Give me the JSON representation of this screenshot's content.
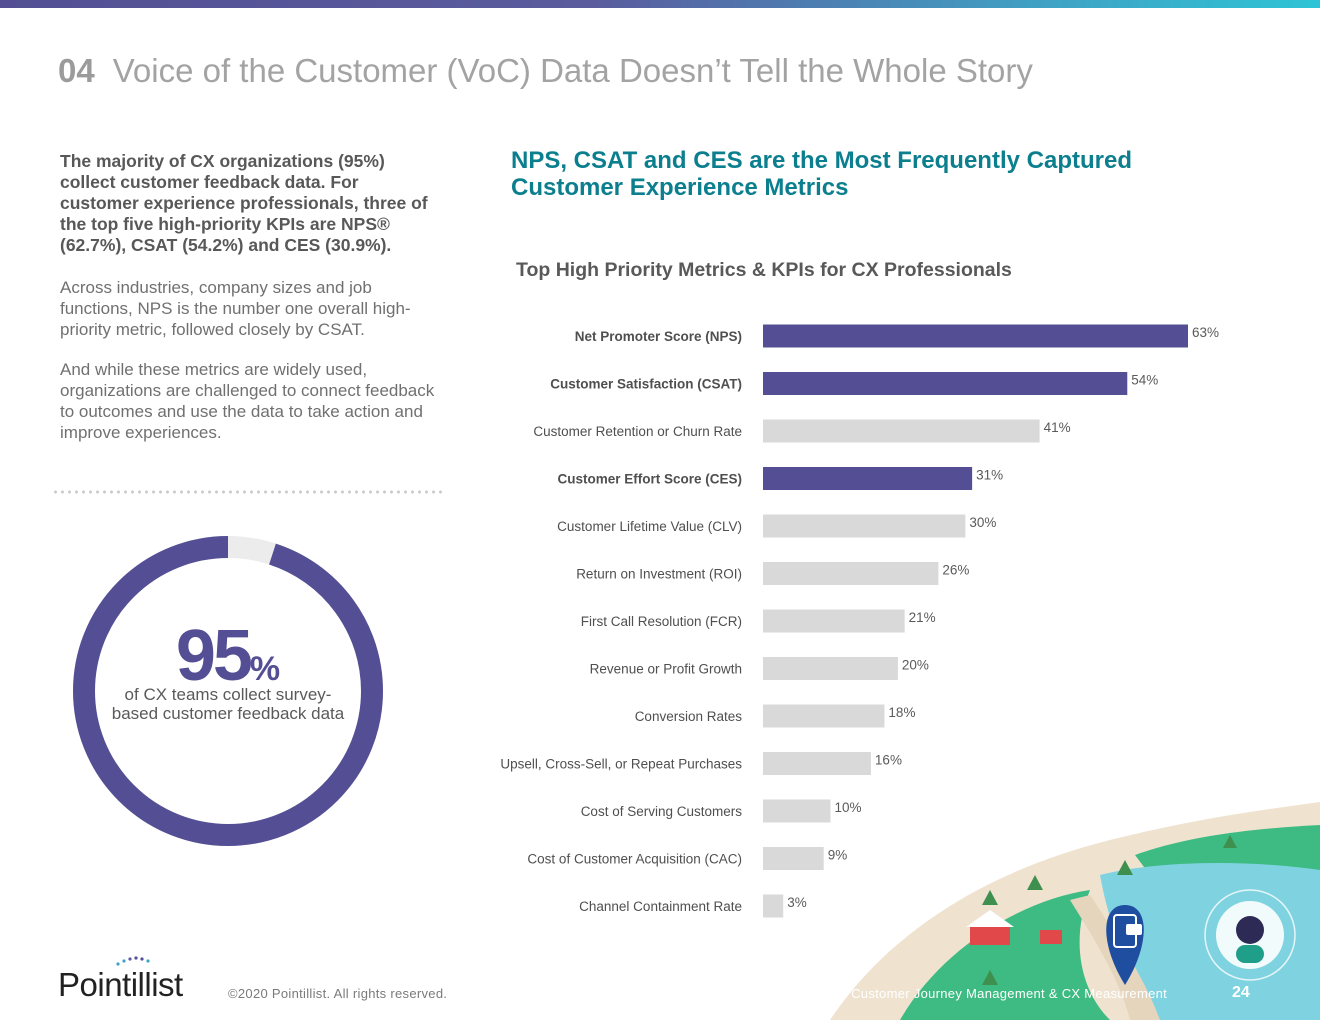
{
  "header": {
    "section_number": "04",
    "title": "Voice of the Customer (VoC) Data Doesn’t Tell the Whole Story"
  },
  "left": {
    "lead": "The majority of CX organizations (95%) collect customer feedback data. For customer experience professionals, three of the top five high-priority KPIs are NPS® (62.7%), CSAT (54.2%) and CES (30.9%).",
    "para1": "Across industries, company sizes and job functions, NPS is the number one overall high-priority metric, followed closely by CSAT.",
    "para2": "And while these metrics are widely used, organizations are challenged to connect feedback to outcomes and use the data to take action and improve experiences."
  },
  "donut": {
    "value": 95,
    "number": "95",
    "unit": "%",
    "caption": "of CX teams collect survey-based customer feedback data"
  },
  "headline": "NPS, CSAT and CES are the Most Frequently Captured Customer Experience Metrics",
  "chart_data": {
    "type": "bar",
    "orientation": "horizontal",
    "title": "Top High Priority Metrics & KPIs for CX Professionals",
    "xlim": [
      0,
      100
    ],
    "grid": false,
    "categories": [
      "Net Promoter Score (NPS)",
      "Customer Satisfaction (CSAT)",
      "Customer Retention or Churn Rate",
      "Customer Effort Score (CES)",
      "Customer Lifetime Value (CLV)",
      "Return on Investment (ROI)",
      "First Call Resolution (FCR)",
      "Revenue or Profit Growth",
      "Conversion Rates",
      "Upsell, Cross-Sell, or Repeat Purchases",
      "Cost of Serving Customers",
      "Cost of Customer Acquisition (CAC)",
      "Channel Containment Rate"
    ],
    "values": [
      63,
      54,
      41,
      31,
      30,
      26,
      21,
      20,
      18,
      16,
      10,
      9,
      3
    ],
    "labels": [
      "63%",
      "54%",
      "41%",
      "31%",
      "30%",
      "26%",
      "21%",
      "20%",
      "18%",
      "16%",
      "10%",
      "9%",
      "3%"
    ],
    "highlighted": [
      true,
      true,
      false,
      true,
      false,
      false,
      false,
      false,
      false,
      false,
      false,
      false,
      false
    ],
    "colors": {
      "highlight": "#544f94",
      "default": "#d9d9d9",
      "label": "#5a5a5a"
    }
  },
  "footer": {
    "logo_text": "Pointillist",
    "copyright": "©2020 Pointillist. All rights reserved.",
    "report_title": "State of Customer Journey Management & CX Measurement",
    "page_number": "24"
  },
  "colors": {
    "brand_purple": "#544f94",
    "teal": "#0c7f8f"
  }
}
